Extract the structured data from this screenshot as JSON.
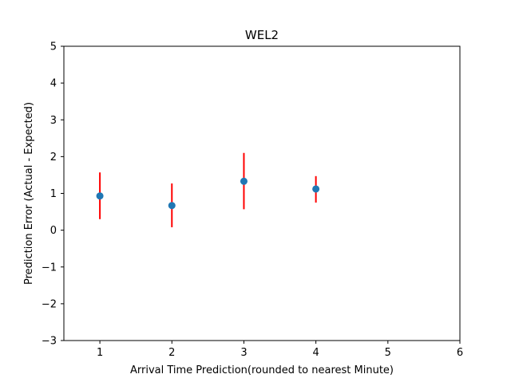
{
  "chart_data": {
    "type": "scatter",
    "title": "WEL2",
    "xlabel": "Arrival Time Prediction(rounded to nearest Minute)",
    "ylabel": "Prediction Error (Actual - Expected)",
    "xlim": [
      0.5,
      6
    ],
    "ylim": [
      -3,
      5
    ],
    "x_ticks": [
      1,
      2,
      3,
      4,
      5,
      6
    ],
    "y_ticks": [
      -3,
      -2,
      -1,
      0,
      1,
      2,
      3,
      4,
      5
    ],
    "grid": false,
    "marker_color": "#1f77b4",
    "errorbar_color": "#ff0000",
    "points": [
      {
        "x": 1,
        "y": 0.93,
        "err_low": 0.3,
        "err_high": 1.57
      },
      {
        "x": 2,
        "y": 0.67,
        "err_low": 0.08,
        "err_high": 1.27
      },
      {
        "x": 3,
        "y": 1.33,
        "err_low": 0.57,
        "err_high": 2.1
      },
      {
        "x": 4,
        "y": 1.12,
        "err_low": 0.75,
        "err_high": 1.47
      }
    ]
  }
}
